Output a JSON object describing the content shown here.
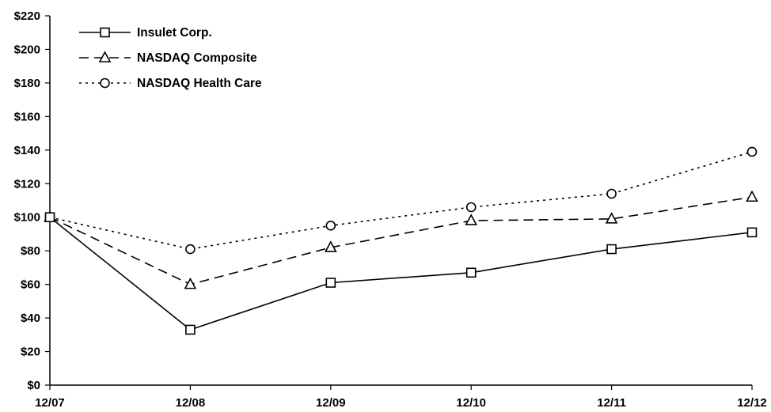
{
  "chart_data": {
    "type": "line",
    "title": "",
    "xlabel": "",
    "ylabel": "",
    "categories": [
      "12/07",
      "12/08",
      "12/09",
      "12/10",
      "12/11",
      "12/12"
    ],
    "ylim": [
      0,
      220
    ],
    "y_ticks": [
      0,
      20,
      40,
      60,
      80,
      100,
      120,
      140,
      160,
      180,
      200,
      220
    ],
    "y_tick_labels": [
      "$0",
      "$20",
      "$40",
      "$60",
      "$80",
      "$100",
      "$120",
      "$140",
      "$160",
      "$180",
      "$200",
      "$220"
    ],
    "grid": false,
    "legend_position": "top-left",
    "series": [
      {
        "name": "Insulet Corp.",
        "values": [
          100,
          33,
          61,
          67,
          81,
          91
        ],
        "marker": "square",
        "line_style": "solid"
      },
      {
        "name": "NASDAQ Composite",
        "values": [
          100,
          60,
          82,
          98,
          99,
          112
        ],
        "marker": "triangle",
        "line_style": "dashed"
      },
      {
        "name": "NASDAQ Health Care",
        "values": [
          100,
          81,
          95,
          106,
          114,
          139
        ],
        "marker": "circle",
        "line_style": "dotted"
      }
    ]
  }
}
